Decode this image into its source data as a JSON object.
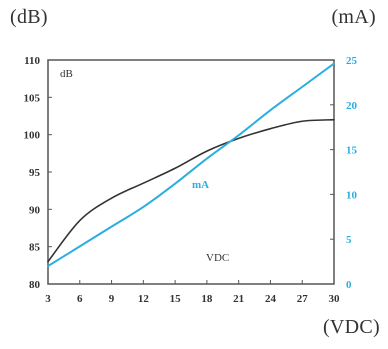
{
  "units": {
    "left": "(dB)",
    "right": "(mA)",
    "bottom": "(VDC)"
  },
  "chart_data": {
    "type": "line",
    "inner_labels": {
      "left_axis": "dB",
      "series_label": "mA",
      "x_axis": "VDC"
    },
    "x": [
      3,
      6,
      9,
      12,
      15,
      18,
      21,
      24,
      27,
      30
    ],
    "xlim": [
      3,
      30
    ],
    "x_ticks": [
      "3",
      "6",
      "9",
      "12",
      "15",
      "18",
      "21",
      "24",
      "27",
      "30"
    ],
    "y_left": {
      "ylim": [
        80,
        110
      ],
      "ticks": [
        "80",
        "85",
        "90",
        "95",
        "100",
        "105",
        "110"
      ]
    },
    "y_right": {
      "ylim": [
        0,
        25
      ],
      "ticks": [
        "0",
        "5",
        "10",
        "15",
        "20",
        "25"
      ]
    },
    "series": [
      {
        "axis": "left",
        "color": "#333333",
        "values": [
          83.0,
          88.5,
          91.5,
          93.5,
          95.5,
          97.8,
          99.5,
          100.8,
          101.8,
          102.0
        ]
      },
      {
        "name": "mA",
        "axis": "right",
        "color": "#2aaee0",
        "values": [
          2.0,
          4.2,
          6.4,
          8.6,
          11.2,
          14.0,
          16.6,
          19.4,
          22.0,
          24.6
        ]
      }
    ],
    "grid": false
  }
}
